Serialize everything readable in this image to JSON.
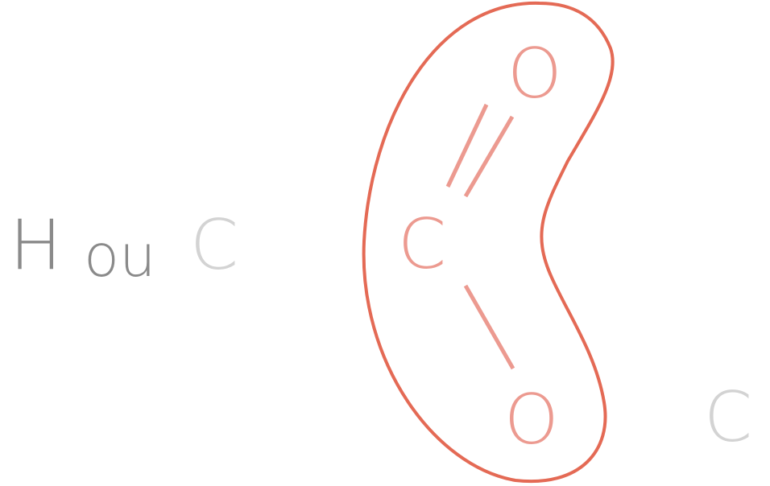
{
  "left_label": {
    "first": "H",
    "connector": "ou",
    "second": "C"
  },
  "molecule": {
    "top_atom": "O",
    "center_atom": "C",
    "bottom_atom": "O"
  },
  "right_label": "C",
  "colors": {
    "dark_text": "#8a8a8a",
    "light_text": "#d3d3d3",
    "outline": "#e46a55",
    "molecule": "#ec9a90"
  }
}
